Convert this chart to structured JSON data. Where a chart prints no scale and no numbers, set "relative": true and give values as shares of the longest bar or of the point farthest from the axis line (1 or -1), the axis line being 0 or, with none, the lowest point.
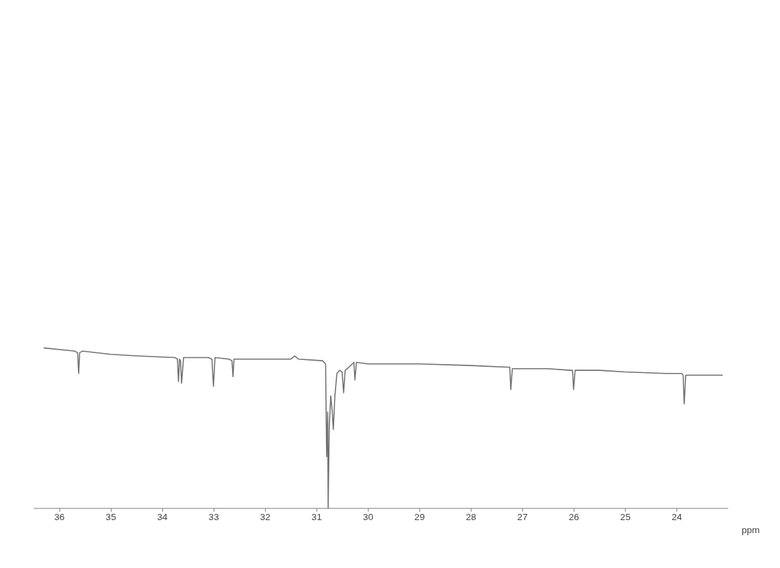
{
  "chart_data": {
    "type": "line",
    "relative": true,
    "xlabel": "ppm",
    "xlim": [
      36.5,
      23.0
    ],
    "xticks": [
      36,
      35,
      34,
      33,
      32,
      31,
      30,
      29,
      28,
      27,
      26,
      25,
      24
    ],
    "grid": false,
    "marker": "none",
    "line_style": "solid",
    "series": [
      {
        "color": "#707070",
        "x": [
          36.3,
          35.7,
          35.64,
          35.62,
          35.6,
          35.55,
          35.0,
          34.5,
          33.75,
          33.7,
          33.68,
          33.66,
          33.64,
          33.62,
          33.58,
          33.1,
          33.03,
          33.0,
          32.97,
          32.7,
          32.64,
          32.62,
          32.6,
          32.0,
          31.5,
          31.42,
          31.35,
          30.88,
          30.82,
          30.8,
          30.78,
          30.77,
          30.75,
          30.72,
          30.69,
          30.67,
          30.64,
          30.6,
          30.55,
          30.5,
          30.47,
          30.44,
          30.4,
          30.3,
          30.27,
          30.25,
          30.22,
          30.0,
          29.0,
          28.0,
          27.3,
          27.24,
          27.22,
          27.19,
          27.1,
          26.5,
          26.06,
          26.02,
          26.0,
          25.97,
          25.5,
          25.0,
          24.2,
          23.9,
          23.87,
          23.85,
          23.82,
          23.7,
          23.1
        ],
        "values": [
          1.0,
          0.98,
          0.97,
          0.84,
          0.97,
          0.98,
          0.96,
          0.95,
          0.94,
          0.93,
          0.79,
          0.93,
          0.92,
          0.78,
          0.94,
          0.94,
          0.93,
          0.76,
          0.94,
          0.93,
          0.92,
          0.82,
          0.93,
          0.93,
          0.93,
          0.95,
          0.93,
          0.92,
          0.9,
          0.32,
          0.6,
          0.0,
          0.5,
          0.7,
          0.6,
          0.49,
          0.7,
          0.84,
          0.86,
          0.85,
          0.72,
          0.86,
          0.87,
          0.9,
          0.91,
          0.8,
          0.91,
          0.9,
          0.9,
          0.89,
          0.88,
          0.88,
          0.74,
          0.87,
          0.87,
          0.87,
          0.86,
          0.86,
          0.74,
          0.86,
          0.86,
          0.85,
          0.84,
          0.84,
          0.83,
          0.65,
          0.83,
          0.83,
          0.83
        ]
      }
    ]
  }
}
